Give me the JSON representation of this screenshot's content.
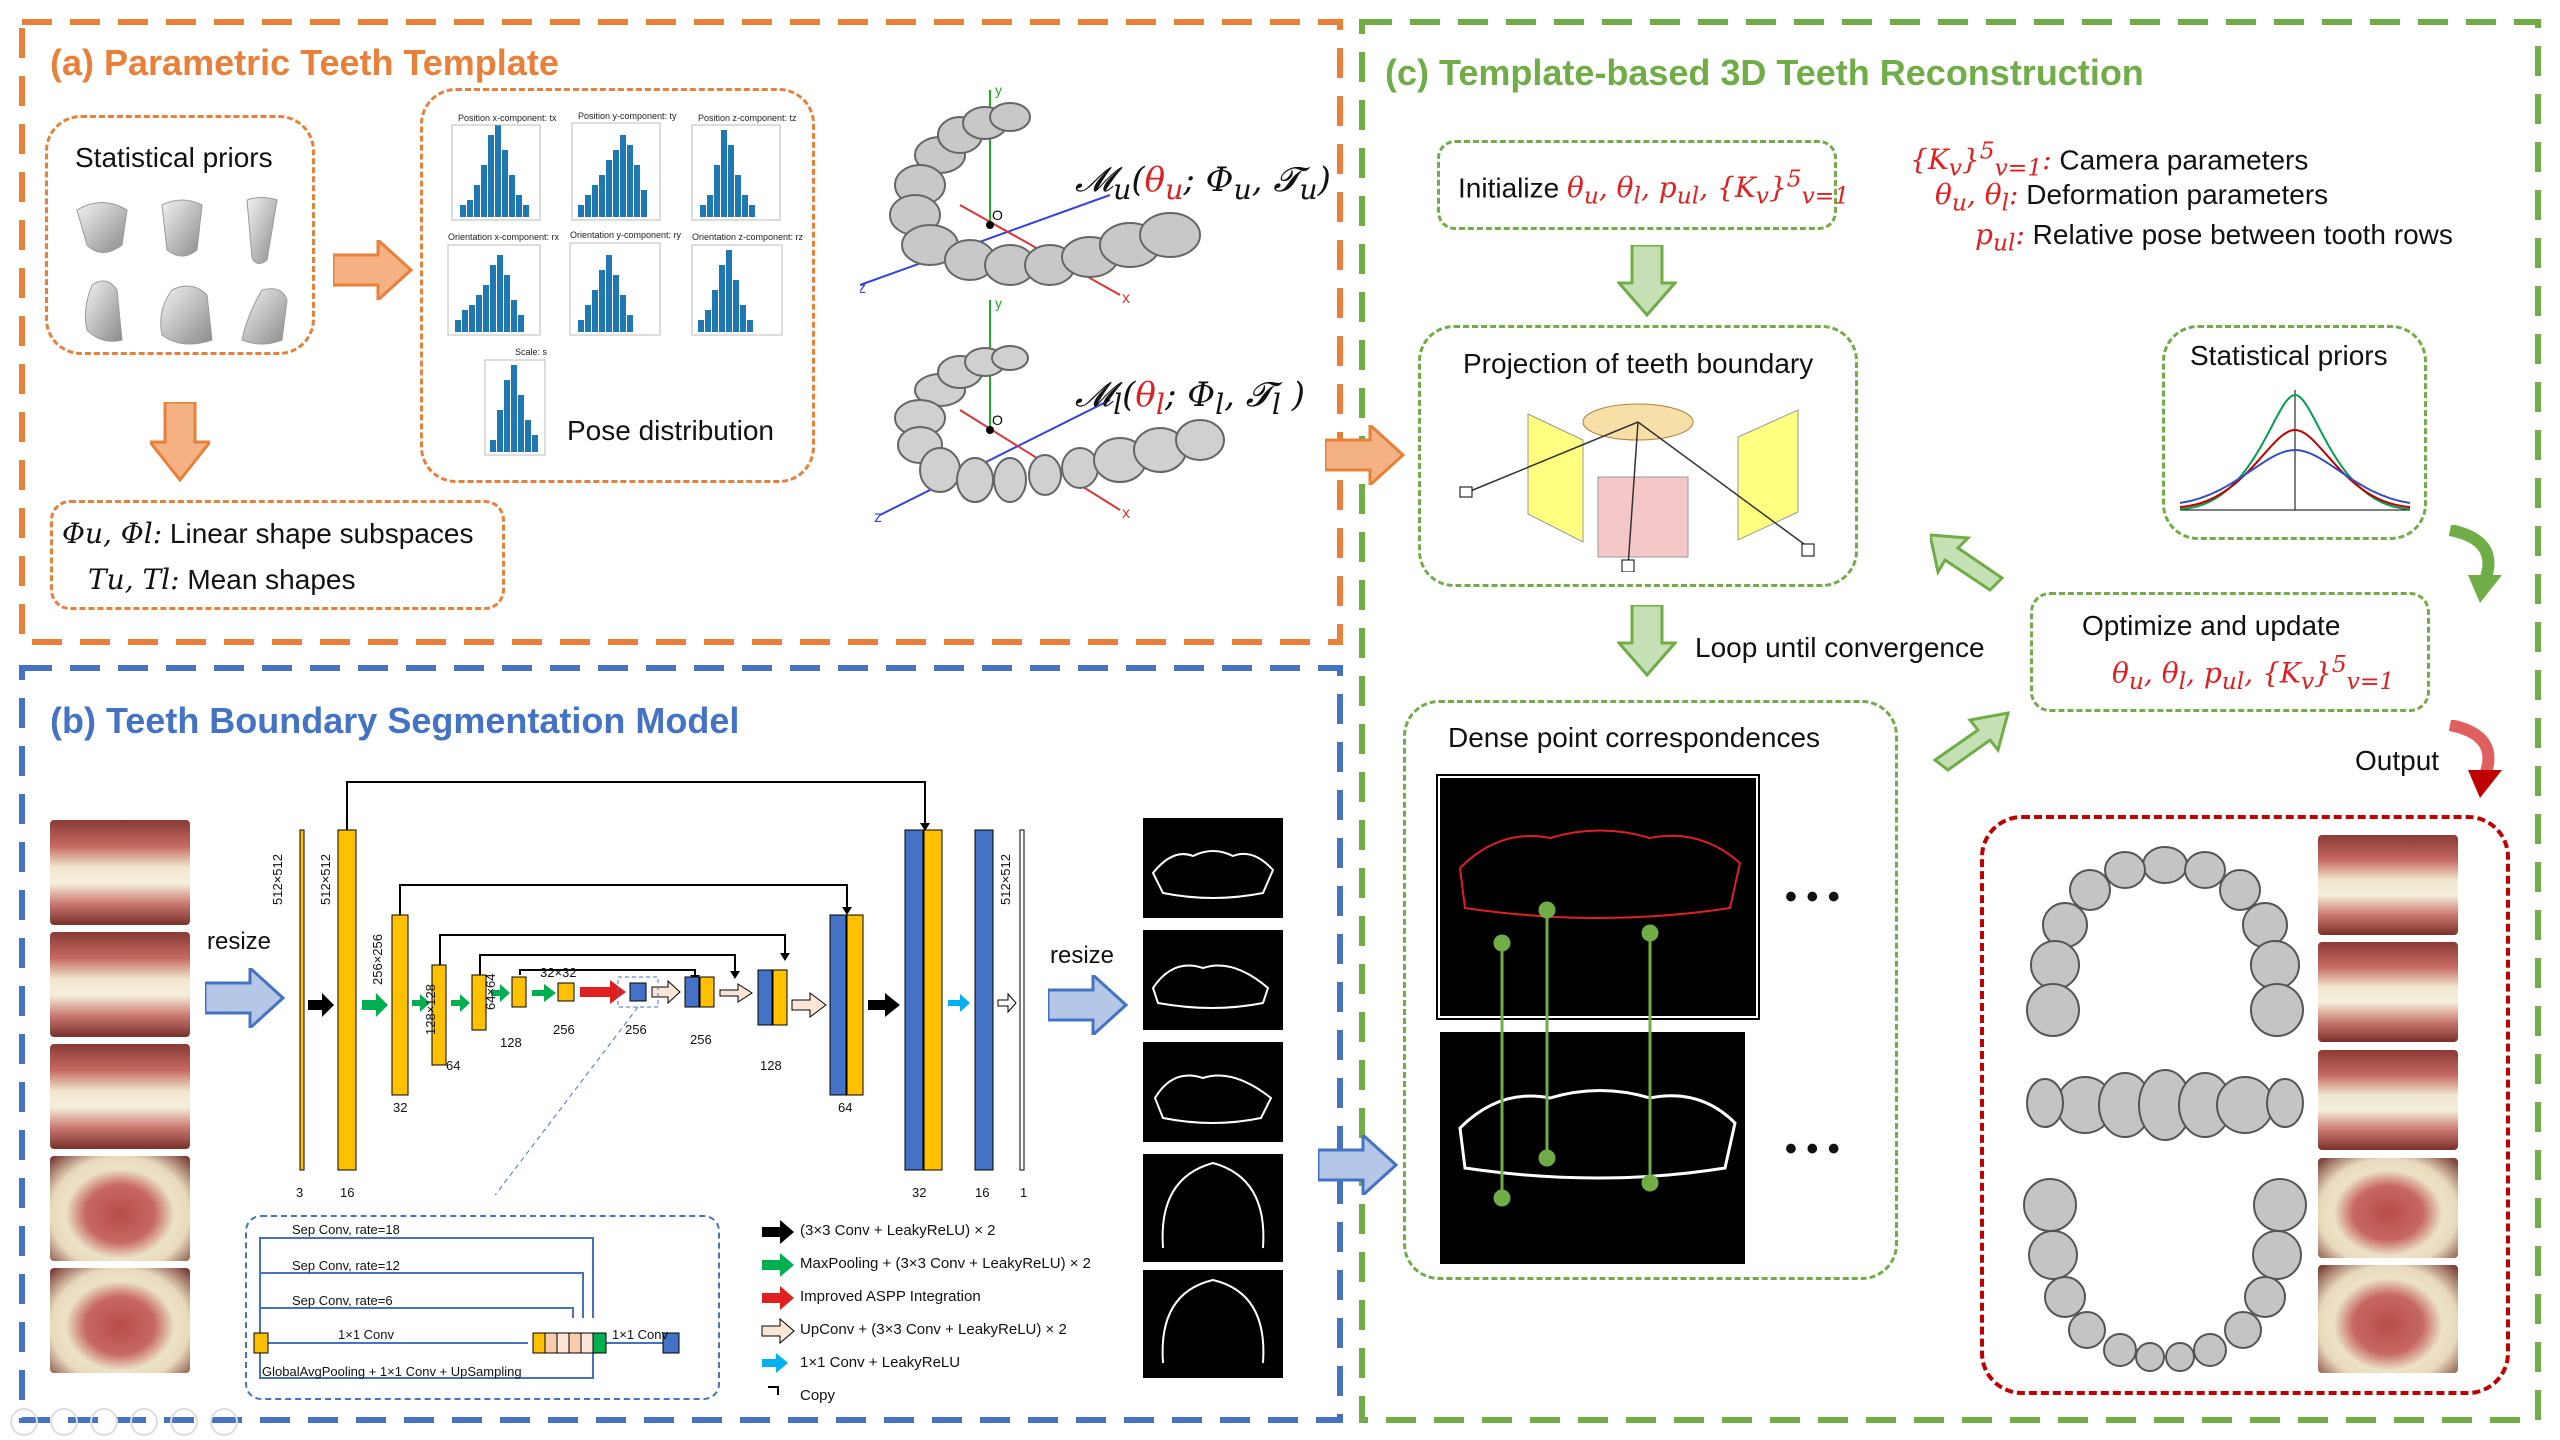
{
  "colors": {
    "orange": "#E8803A",
    "blue": "#4472C4",
    "green": "#70AD47",
    "red": "#C00000",
    "yellow": "#FFC000",
    "navy": "#4472C4"
  },
  "sections": {
    "a_title": "(a) Parametric Teeth Template",
    "b_title": "(b) Teeth Boundary Segmentation Model",
    "c_title": "(c) Template-based 3D Teeth Reconstruction"
  },
  "panel_a": {
    "statistical_priors": "Statistical priors",
    "pose_distribution": "Pose distribution",
    "hist_titles": [
      "Position x-component: tx",
      "Position y-component: ty",
      "Position z-component: tz",
      "Orientation x-component: rx",
      "Orientation y-component: ry",
      "Orientation z-component: rz",
      "Scale: s"
    ],
    "shape_line1_sym": "Φu, Φl:",
    "shape_line1_text": "Linear shape subspaces",
    "shape_line2_sym": "Tu, Tl:",
    "shape_line2_text": "Mean shapes",
    "model_upper": "Mu(θu; Φu, Tu)",
    "model_lower": "Ml(θl; Φl, Tl )",
    "axis_x": "x",
    "axis_y": "y",
    "axis_z": "z",
    "origin": "O"
  },
  "panel_b": {
    "resize_in": "resize",
    "resize_out": "resize",
    "dims": {
      "d512a": "512×512",
      "d512b": "512×512",
      "d256": "256×256",
      "d128": "128×128",
      "d64": "64×64",
      "d32": "32×32",
      "d512c": "512×512"
    },
    "channels": {
      "c3": "3",
      "c16": "16",
      "c32": "32",
      "c64": "64",
      "c128": "128",
      "c256a": "256",
      "c256b": "256",
      "c256c": "256",
      "c128b": "128",
      "c64b": "64",
      "c32b": "32",
      "c16b": "16",
      "c1": "1"
    },
    "aspp": {
      "r18": "Sep Conv, rate=18",
      "r12": "Sep Conv, rate=12",
      "r6": "Sep Conv, rate=6",
      "conv1": "1×1 Conv",
      "conv1b": "1×1 Conv",
      "gap": "GlobalAvgPooling + 1×1 Conv + UpSampling"
    },
    "legend": [
      "(3×3 Conv + LeakyReLU) × 2",
      "MaxPooling + (3×3 Conv + LeakyReLU) × 2",
      "Improved ASPP Integration",
      "UpConv + (3×3 Conv + LeakyReLU) × 2",
      "1×1 Conv + LeakyReLU",
      "Copy"
    ]
  },
  "panel_c": {
    "init_label": "Initialize",
    "init_math": "θu, θl, pul, {Kv}5v=1",
    "params": [
      {
        "sym": "{Kv}5v=1:",
        "text": "Camera parameters"
      },
      {
        "sym": "θu, θl:",
        "text": "Deformation parameters"
      },
      {
        "sym": "pul:",
        "text": "Relative pose between tooth rows"
      }
    ],
    "projection": "Projection of teeth boundary",
    "stat_priors": "Statistical priors",
    "loop": "Loop until convergence",
    "optimize": "Optimize and update",
    "optimize_math": "θu, θl, pul, {Kv}5v=1",
    "dense": "Dense point correspondences",
    "ellipsis1": "• • •",
    "ellipsis2": "• • •",
    "output": "Output"
  }
}
